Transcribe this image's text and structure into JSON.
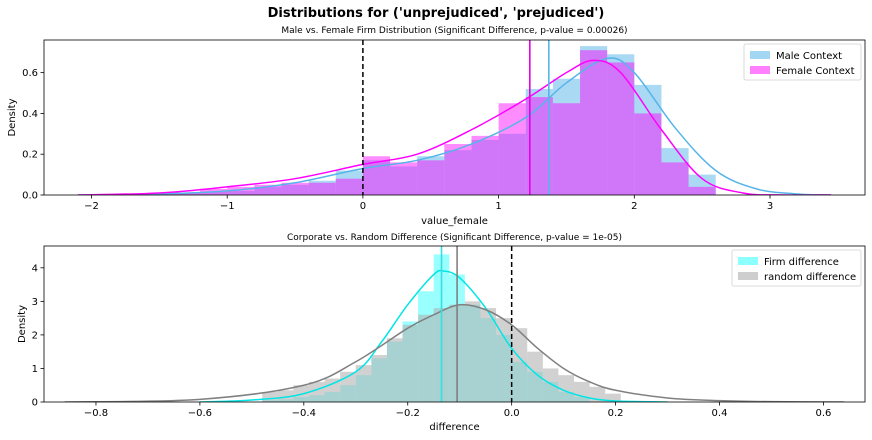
{
  "figure": {
    "suptitle": "Distributions for ('unprejudiced', 'prejudiced')"
  },
  "chart_data": [
    {
      "type": "histogram+kde",
      "title": "Male vs. Female Firm Distribution (Significant Difference, p-value = 0.00026)",
      "xlabel": "value_female",
      "ylabel": "Density",
      "xlim": [
        -2.35,
        3.7
      ],
      "ylim": [
        0,
        0.76
      ],
      "xticks": [
        -2,
        -1,
        0,
        1,
        2,
        3
      ],
      "yticks": [
        0.0,
        0.2,
        0.4,
        0.6
      ],
      "xtick_labels": [
        "−2",
        "−1",
        "0",
        "1",
        "2",
        "3"
      ],
      "ytick_labels": [
        "0.0",
        "0.2",
        "0.4",
        "0.6"
      ],
      "legend_position": "top-right",
      "bin_width": 0.2,
      "series": [
        {
          "name": "Male Context",
          "color": "#56b4e9",
          "bin_starts": [
            -2.0,
            -1.8,
            -1.6,
            -1.4,
            -1.2,
            -1.0,
            -0.8,
            -0.6,
            -0.4,
            -0.2,
            0.0,
            0.2,
            0.4,
            0.6,
            0.8,
            1.0,
            1.2,
            1.4,
            1.6,
            1.8,
            2.0,
            2.2,
            2.4
          ],
          "values": [
            0.0,
            0.0,
            0.005,
            0.01,
            0.015,
            0.02,
            0.04,
            0.05,
            0.07,
            0.12,
            0.17,
            0.14,
            0.19,
            0.22,
            0.27,
            0.3,
            0.52,
            0.57,
            0.73,
            0.69,
            0.54,
            0.23,
            0.1
          ],
          "kde": [
            [
              -2.1,
              0.0
            ],
            [
              -1.5,
              0.005
            ],
            [
              -1.0,
              0.02
            ],
            [
              -0.5,
              0.06
            ],
            [
              0.0,
              0.13
            ],
            [
              0.4,
              0.17
            ],
            [
              0.8,
              0.25
            ],
            [
              1.2,
              0.38
            ],
            [
              1.5,
              0.55
            ],
            [
              1.8,
              0.67
            ],
            [
              2.0,
              0.6
            ],
            [
              2.3,
              0.33
            ],
            [
              2.6,
              0.12
            ],
            [
              2.9,
              0.03
            ],
            [
              3.2,
              0.005
            ],
            [
              3.45,
              0.0
            ]
          ],
          "mean_line": 1.37
        },
        {
          "name": "Female Context",
          "color": "#ff00ff",
          "bin_starts": [
            -2.0,
            -1.8,
            -1.6,
            -1.4,
            -1.2,
            -1.0,
            -0.8,
            -0.6,
            -0.4,
            -0.2,
            0.0,
            0.2,
            0.4,
            0.6,
            0.8,
            1.0,
            1.2,
            1.4,
            1.6,
            1.8,
            2.0,
            2.2,
            2.4
          ],
          "values": [
            0.003,
            0.004,
            0.01,
            0.012,
            0.03,
            0.04,
            0.05,
            0.06,
            0.06,
            0.08,
            0.19,
            0.16,
            0.17,
            0.25,
            0.29,
            0.45,
            0.48,
            0.45,
            0.71,
            0.65,
            0.4,
            0.16,
            0.04
          ],
          "kde": [
            [
              -2.1,
              0.0
            ],
            [
              -1.5,
              0.01
            ],
            [
              -1.0,
              0.04
            ],
            [
              -0.5,
              0.08
            ],
            [
              0.0,
              0.15
            ],
            [
              0.4,
              0.2
            ],
            [
              0.8,
              0.32
            ],
            [
              1.2,
              0.47
            ],
            [
              1.5,
              0.6
            ],
            [
              1.7,
              0.66
            ],
            [
              1.9,
              0.6
            ],
            [
              2.2,
              0.32
            ],
            [
              2.5,
              0.08
            ],
            [
              2.8,
              0.01
            ],
            [
              3.1,
              0.0
            ],
            [
              3.45,
              0.0
            ]
          ],
          "mean_line": 1.23
        }
      ],
      "reference_line": 0.0
    },
    {
      "type": "histogram+kde",
      "title": "Corporate vs. Random Difference (Significant Difference, p-value = 1e-05)",
      "xlabel": "difference",
      "ylabel": "Density",
      "xlim": [
        -0.9,
        0.68
      ],
      "ylim": [
        0,
        4.65
      ],
      "xticks": [
        -0.8,
        -0.6,
        -0.4,
        -0.2,
        0.0,
        0.2,
        0.4,
        0.6
      ],
      "yticks": [
        0,
        1,
        2,
        3,
        4
      ],
      "xtick_labels": [
        "−0.8",
        "−0.6",
        "−0.4",
        "−0.2",
        "0.0",
        "0.2",
        "0.4",
        "0.6"
      ],
      "ytick_labels": [
        "0",
        "1",
        "2",
        "3",
        "4"
      ],
      "legend_position": "top-right",
      "bin_width": 0.03,
      "series": [
        {
          "name": "Firm difference",
          "color": "#00ffff",
          "bin_starts": [
            -0.48,
            -0.45,
            -0.42,
            -0.39,
            -0.36,
            -0.33,
            -0.3,
            -0.27,
            -0.24,
            -0.21,
            -0.18,
            -0.15,
            -0.12,
            -0.09,
            -0.06,
            -0.03,
            0.0,
            0.03,
            0.06,
            0.09,
            0.12
          ],
          "values": [
            0.05,
            0.08,
            0.15,
            0.2,
            0.3,
            0.5,
            0.8,
            1.3,
            1.8,
            2.4,
            3.3,
            4.4,
            3.8,
            2.9,
            2.5,
            2.0,
            1.2,
            0.9,
            0.6,
            0.3,
            0.15
          ],
          "kde": [
            [
              -0.6,
              0.0
            ],
            [
              -0.5,
              0.06
            ],
            [
              -0.4,
              0.25
            ],
            [
              -0.3,
              0.9
            ],
            [
              -0.25,
              1.8
            ],
            [
              -0.2,
              2.9
            ],
            [
              -0.15,
              3.8
            ],
            [
              -0.13,
              3.9
            ],
            [
              -0.1,
              3.7
            ],
            [
              -0.05,
              2.8
            ],
            [
              0.0,
              1.6
            ],
            [
              0.05,
              0.8
            ],
            [
              0.1,
              0.35
            ],
            [
              0.15,
              0.12
            ],
            [
              0.2,
              0.03
            ],
            [
              0.3,
              0.0
            ]
          ],
          "mean_line": -0.135
        },
        {
          "name": "random difference",
          "color": "#b3b3b3",
          "bin_starts": [
            -0.48,
            -0.45,
            -0.42,
            -0.39,
            -0.36,
            -0.33,
            -0.3,
            -0.27,
            -0.24,
            -0.21,
            -0.18,
            -0.15,
            -0.12,
            -0.09,
            -0.06,
            -0.03,
            0.0,
            0.03,
            0.06,
            0.09,
            0.12,
            0.15,
            0.18
          ],
          "values": [
            0.3,
            0.35,
            0.5,
            0.6,
            0.7,
            0.9,
            1.1,
            1.4,
            1.9,
            2.3,
            2.6,
            2.8,
            2.9,
            3.0,
            2.8,
            2.5,
            2.2,
            1.5,
            1.0,
            0.8,
            0.6,
            0.45,
            0.25
          ],
          "kde": [
            [
              -0.86,
              0.0
            ],
            [
              -0.6,
              0.08
            ],
            [
              -0.4,
              0.5
            ],
            [
              -0.3,
              1.2
            ],
            [
              -0.2,
              2.2
            ],
            [
              -0.15,
              2.6
            ],
            [
              -0.1,
              2.9
            ],
            [
              -0.05,
              2.75
            ],
            [
              0.0,
              2.3
            ],
            [
              0.05,
              1.6
            ],
            [
              0.1,
              1.0
            ],
            [
              0.15,
              0.6
            ],
            [
              0.2,
              0.35
            ],
            [
              0.3,
              0.12
            ],
            [
              0.4,
              0.04
            ],
            [
              0.5,
              0.01
            ],
            [
              0.64,
              0.0
            ]
          ],
          "mean_line": -0.105
        }
      ],
      "reference_line": 0.0
    }
  ]
}
